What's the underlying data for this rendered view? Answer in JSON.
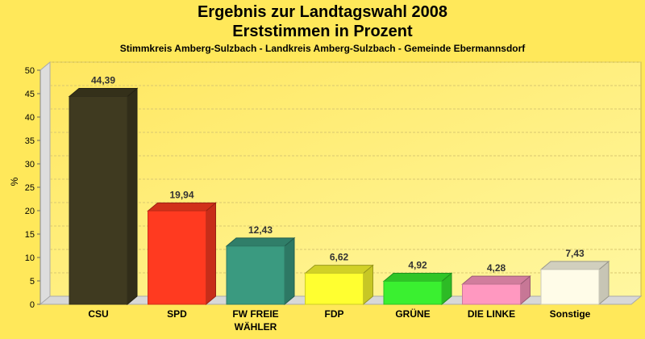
{
  "chart_data": {
    "type": "bar",
    "title": "Ergebnis zur Landtagswahl 2008",
    "subtitle": "Erststimmen in Prozent",
    "subsubtitle": "Stimmkreis Amberg-Sulzbach - Landkreis Amberg-Sulzbach - Gemeinde Ebermannsdorf",
    "xlabel": "",
    "ylabel": "%",
    "ylim": [
      0,
      50
    ],
    "yticks": [
      0,
      5,
      10,
      15,
      20,
      25,
      30,
      35,
      40,
      45,
      50
    ],
    "grid": true,
    "categories": [
      "CSU",
      "SPD",
      "FW FREIE WÄHLER",
      "FDP",
      "GRÜNE",
      "DIE LINKE",
      "Sonstige"
    ],
    "values": [
      44.39,
      19.94,
      12.43,
      6.62,
      4.92,
      4.28,
      7.43
    ],
    "value_labels": [
      "44,39",
      "19,94",
      "12,43",
      "6,62",
      "4,92",
      "4,28",
      "7,43"
    ],
    "colors": [
      "#3f3a20",
      "#ff3a20",
      "#3a9a80",
      "#ffff30",
      "#3af030",
      "#ff98c0",
      "#fffce8"
    ]
  }
}
